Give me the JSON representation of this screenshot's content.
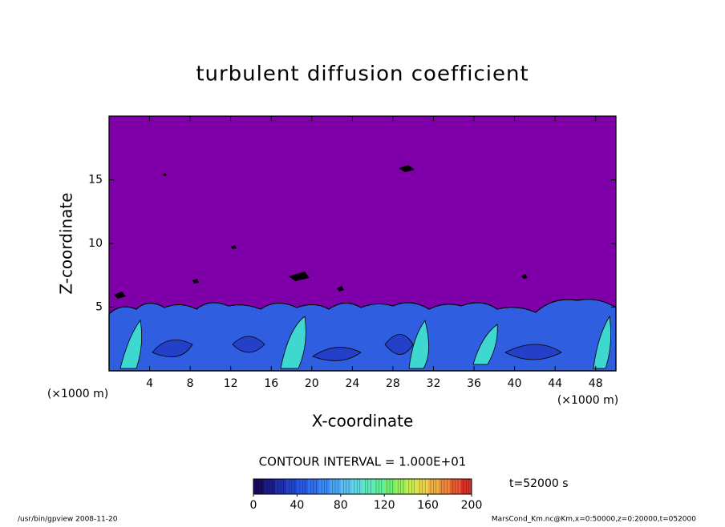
{
  "chart_data": {
    "type": "contour",
    "title": "turbulent diffusion coefficient",
    "x_label": "X-coordinate",
    "y_label": "Z-coordinate",
    "x_units": "(×1000 m)",
    "y_units": "(×1000 m)",
    "xlim": [
      0,
      50
    ],
    "xticks": [
      4,
      8,
      12,
      16,
      20,
      24,
      28,
      32,
      36,
      40,
      44,
      48
    ],
    "ylim": [
      0,
      20
    ],
    "yticks": [
      5,
      10,
      15
    ],
    "field_color": "#7f00a8",
    "contour_interval_label": "CONTOUR INTERVAL = 1.000E+01",
    "time_label": "t=52000 s",
    "colorbar": {
      "lim": [
        0,
        200
      ],
      "ticks": [
        0,
        40,
        80,
        120,
        160,
        200
      ],
      "colors": [
        "#1a0a60",
        "#1c1c8c",
        "#1f2fb0",
        "#2244cc",
        "#2a5ae0",
        "#2f70f0",
        "#3a8af5",
        "#4aa5f5",
        "#5ac0f0",
        "#60d8e0",
        "#5ee8c0",
        "#5ef09a",
        "#70f070",
        "#9af05a",
        "#c8ec50",
        "#e8d848",
        "#f0b040",
        "#f08838",
        "#e85a30",
        "#d83028"
      ]
    },
    "footer_left": "/usr/bin/gpview  2008-11-20",
    "footer_right": "MarsCond_Km.nc@Km,x=0:50000,z=0:20000,t=052000"
  }
}
